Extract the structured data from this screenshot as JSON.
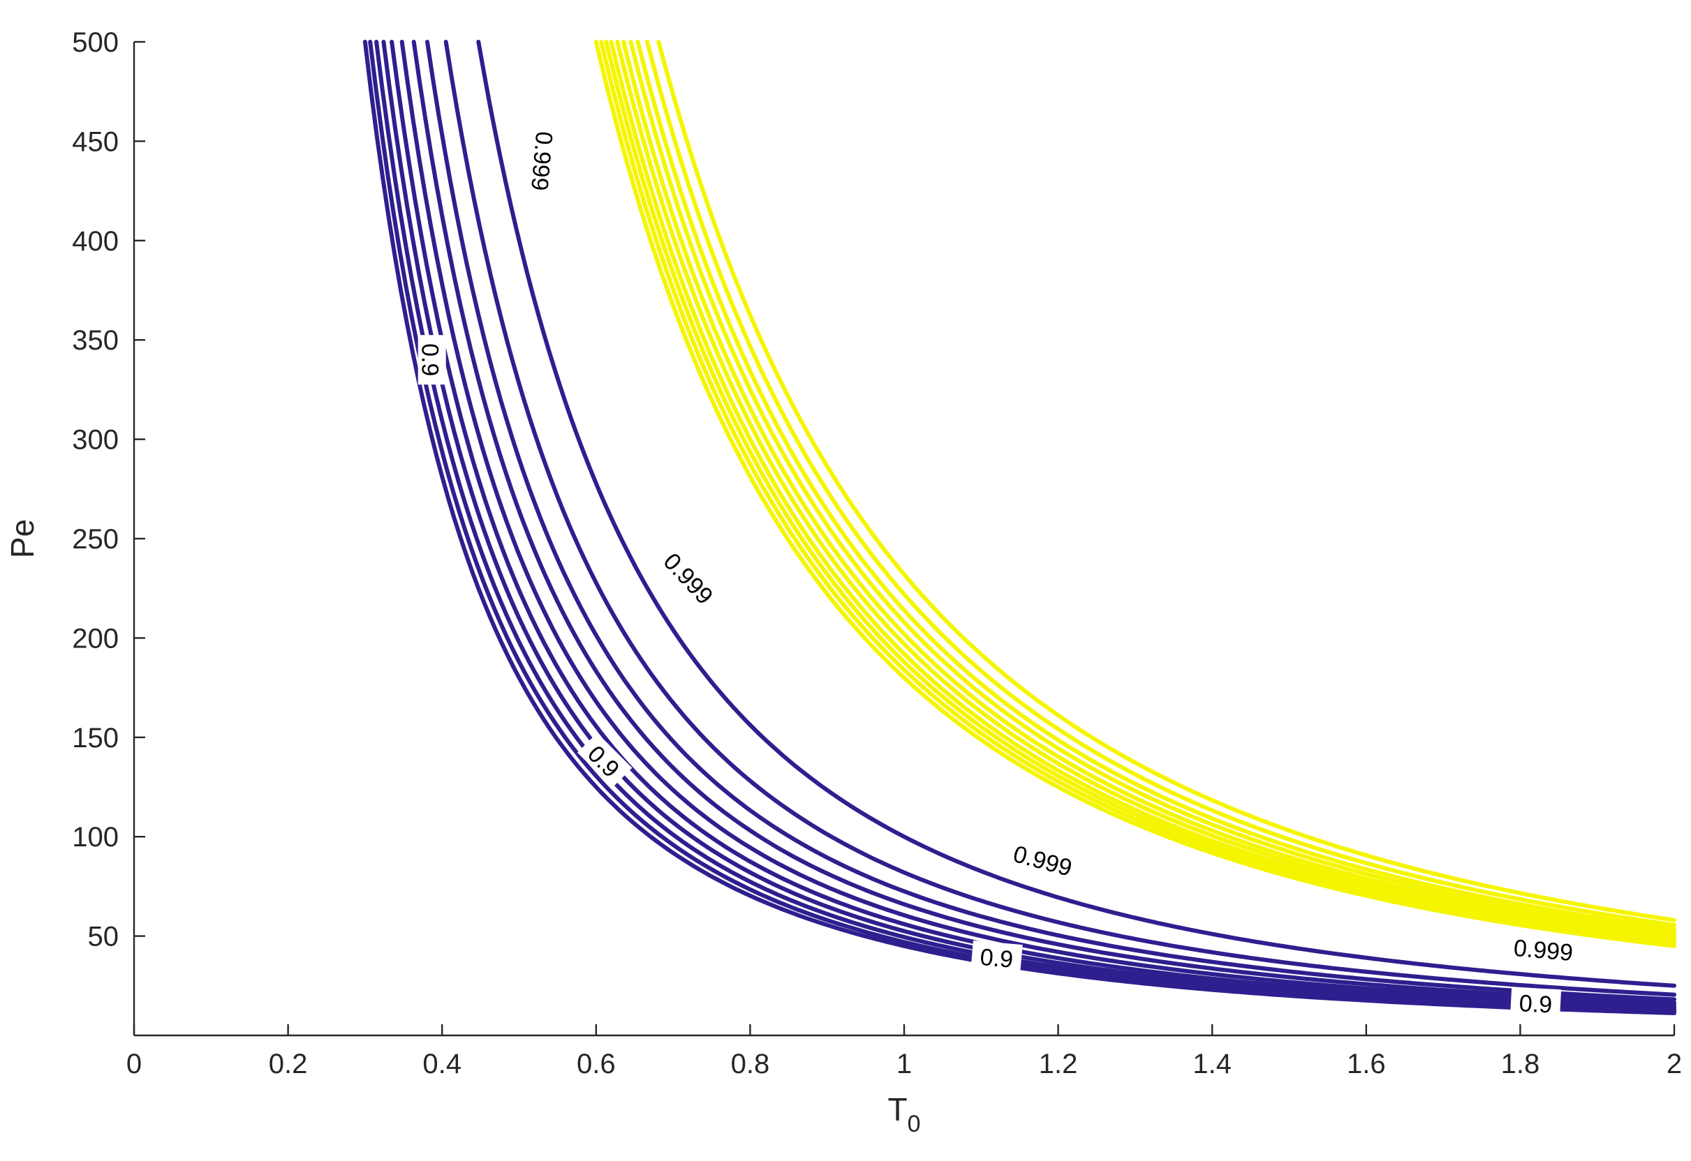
{
  "chart_data": {
    "type": "line",
    "xlabel_base": "T",
    "xlabel_sub": "0",
    "ylabel": "Pe",
    "xlim": [
      0,
      2
    ],
    "ylim": [
      0,
      500
    ],
    "xticks": [
      0,
      0.2,
      0.4,
      0.6,
      0.8,
      1,
      1.2,
      1.4,
      1.6,
      1.8,
      2
    ],
    "xtick_labels": [
      "0",
      "0.2",
      "0.4",
      "0.6",
      "0.8",
      "1",
      "1.2",
      "1.4",
      "1.6",
      "1.8",
      "2"
    ],
    "yticks": [
      50,
      100,
      150,
      200,
      250,
      300,
      350,
      400,
      450,
      500
    ],
    "ytick_labels": [
      "50",
      "100",
      "150",
      "200",
      "250",
      "300",
      "350",
      "400",
      "450",
      "500"
    ],
    "grid": false,
    "colors": {
      "low_level": "#2e1f8f",
      "high_level": "#f5f500",
      "axis": "#262626"
    },
    "series": [
      {
        "group": "low",
        "c": 45.0
      },
      {
        "group": "low",
        "c": 47.0
      },
      {
        "group": "low",
        "c": 49.5
      },
      {
        "group": "low",
        "c": 52.5
      },
      {
        "group": "low",
        "c": 56.0
      },
      {
        "group": "low",
        "c": 60.5
      },
      {
        "group": "low",
        "c": 66.0
      },
      {
        "group": "low",
        "c": 72.5
      },
      {
        "group": "low",
        "c": 82.0
      },
      {
        "group": "low",
        "name": "0.9",
        "c": 100.0
      },
      {
        "group": "high",
        "c": 180.0
      },
      {
        "group": "high",
        "c": 184.0
      },
      {
        "group": "high",
        "c": 188.0
      },
      {
        "group": "high",
        "c": 192.0
      },
      {
        "group": "high",
        "c": 197.0
      },
      {
        "group": "high",
        "c": 202.0
      },
      {
        "group": "high",
        "c": 208.0
      },
      {
        "group": "high",
        "c": 214.0
      },
      {
        "group": "high",
        "c": 222.0
      },
      {
        "group": "high",
        "name": "0.999",
        "c": 232.0
      }
    ],
    "annotations": [
      {
        "text": "0.9",
        "x": 0.385,
        "y": 340,
        "rotation": 90
      },
      {
        "text": "0.9",
        "x": 0.61,
        "y": 138,
        "rotation": 45
      },
      {
        "text": "0.9",
        "x": 1.12,
        "y": 39,
        "rotation": 5
      },
      {
        "text": "0.9",
        "x": 1.82,
        "y": 16,
        "rotation": 3
      },
      {
        "text": "0.999",
        "x": 0.53,
        "y": 440,
        "rotation": 95
      },
      {
        "text": "0.999",
        "x": 0.72,
        "y": 230,
        "rotation": 47
      },
      {
        "text": "0.999",
        "x": 1.18,
        "y": 88,
        "rotation": 15
      },
      {
        "text": "0.999",
        "x": 1.83,
        "y": 43,
        "rotation": 5
      }
    ]
  }
}
